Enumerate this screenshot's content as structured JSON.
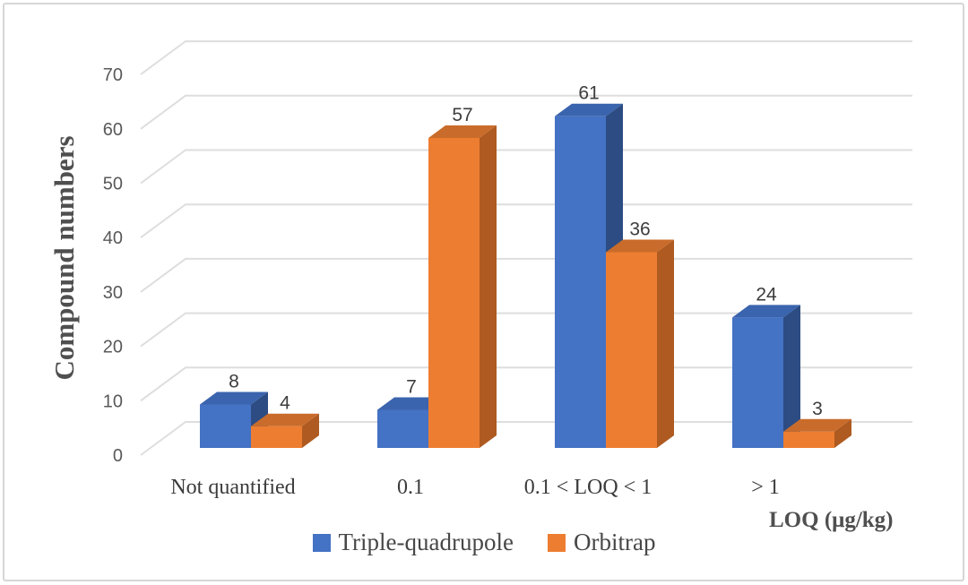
{
  "chart_data": {
    "type": "bar",
    "projection": "3d-clustered",
    "title": "",
    "categories": [
      "Not quantified",
      "0.1",
      "0.1 < LOQ < 1",
      "> 1"
    ],
    "series": [
      {
        "name": "Triple-quadrupole",
        "values": [
          8,
          7,
          61,
          24
        ],
        "color": "#4472C4",
        "color_top": "#3B64AE",
        "color_side": "#2C4C83"
      },
      {
        "name": "Orbitrap",
        "values": [
          4,
          57,
          36,
          3
        ],
        "color": "#ED7D31",
        "color_top": "#C96C2B",
        "color_side": "#AE5A20"
      }
    ],
    "xlabel": "LOQ (μg/kg)",
    "ylabel": "Compound numbers",
    "ylim": [
      0,
      70
    ],
    "ytick_step": 10,
    "yticks": [
      0,
      10,
      20,
      30,
      40,
      50,
      60,
      70
    ],
    "grid": true,
    "gridline_color": "#dedede",
    "legend_position": "bottom",
    "data_labels": true,
    "axis_text_color": "#595959",
    "data_label_color": "#3d3d3d",
    "category_text_color": "#3b3b3b",
    "legend_text_color": "#474747",
    "title_text_color": "#4f4f4f"
  }
}
